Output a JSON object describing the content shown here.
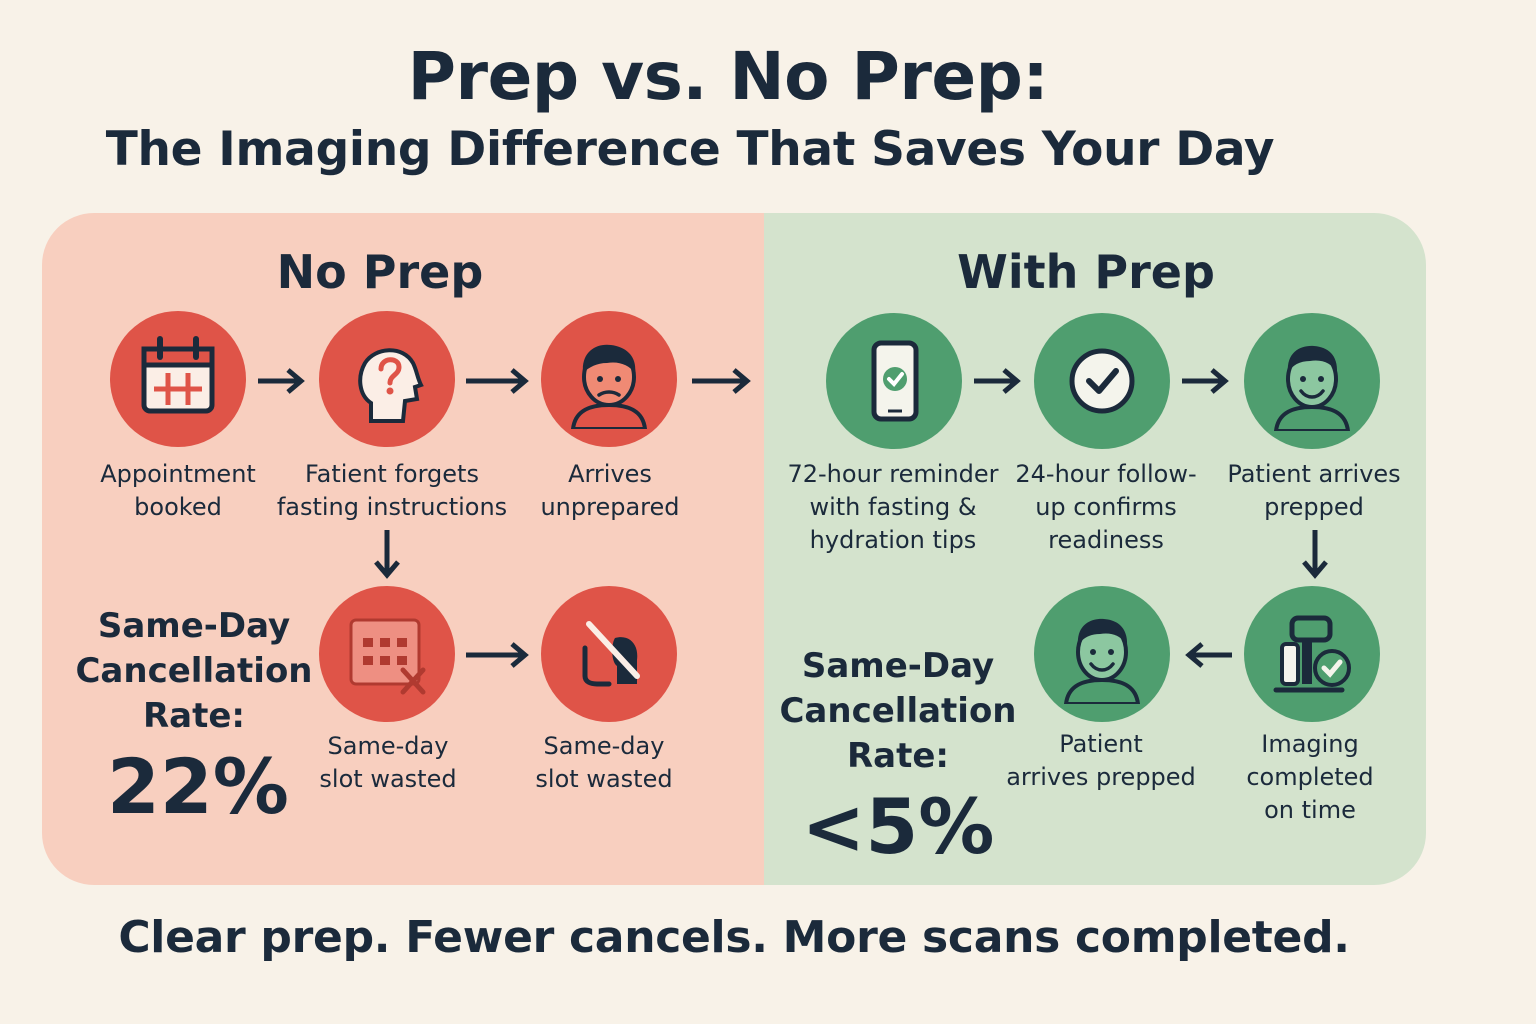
{
  "title": "Prep vs. No Prep:",
  "subtitle": "The Imaging Difference That Saves Your Day",
  "tagline": "Clear prep. Fewer cancels. More scans completed.",
  "colors": {
    "background": "#f8f2e8",
    "no_prep_panel": "#f8cfbf",
    "with_prep_panel": "#d4e3cd",
    "red_accent": "#df5448",
    "green_accent": "#4f9e6f",
    "text": "#1b2a3b"
  },
  "no_prep": {
    "heading": "No Prep",
    "steps": [
      {
        "icon": "calendar-icon",
        "label_lines": [
          "Appointment",
          "booked"
        ]
      },
      {
        "icon": "confused-head-icon",
        "label_lines": [
          "Fatient forgets",
          "fasting instructions"
        ]
      },
      {
        "icon": "unhappy-patient-icon",
        "label_lines": [
          "Arrives",
          "unprepared"
        ]
      },
      {
        "icon": "calendar-cancel-icon",
        "label_lines": [
          "Same-day",
          "slot wasted"
        ]
      },
      {
        "icon": "wasted-slot-icon",
        "label_lines": [
          "Same-day",
          "slot wasted"
        ]
      }
    ],
    "rate_label_lines": [
      "Same-Day",
      "Cancellation",
      "Rate:"
    ],
    "rate_value": "22%"
  },
  "with_prep": {
    "heading": "With Prep",
    "steps": [
      {
        "icon": "phone-reminder-icon",
        "label_lines": [
          "72-hour reminder",
          "with fasting &",
          "hydration tips"
        ]
      },
      {
        "icon": "checkmark-icon",
        "label_lines": [
          "24-hour follow-",
          "up confirms",
          "readiness"
        ]
      },
      {
        "icon": "happy-patient-icon",
        "label_lines": [
          "Patient arrives",
          "prepped"
        ]
      },
      {
        "icon": "imaging-scanner-icon",
        "label_lines": [
          "Imaging",
          "completed",
          "on time"
        ]
      },
      {
        "icon": "smiling-patient-icon",
        "label_lines": [
          "Patient",
          "arrives prepped"
        ]
      }
    ],
    "rate_label_lines": [
      "Same-Day",
      "Cancellation",
      "Rate:"
    ],
    "rate_value": "<5%"
  }
}
